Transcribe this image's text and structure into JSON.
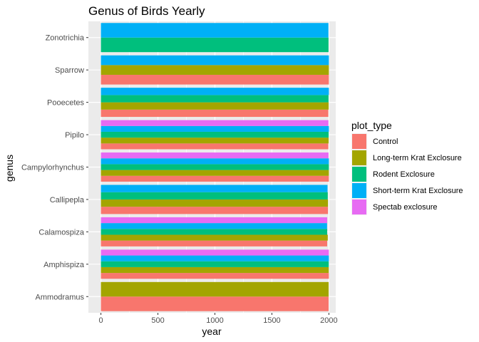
{
  "chart_data": {
    "type": "bar",
    "orientation": "horizontal",
    "title": "Genus of Birds Yearly",
    "xlabel": "year",
    "ylabel": "genus",
    "xlim": [
      -110,
      2060
    ],
    "xticks": [
      0,
      500,
      1000,
      1500,
      2000
    ],
    "grid": true,
    "legend": {
      "title": "plot_type",
      "placement": "right",
      "entries": [
        {
          "name": "Control",
          "color": "#F8766D"
        },
        {
          "name": "Long-term Krat Exclosure",
          "color": "#A3A500"
        },
        {
          "name": "Rodent Exclosure",
          "color": "#00BF7D"
        },
        {
          "name": "Short-term Krat Exclosure",
          "color": "#00B0F6"
        },
        {
          "name": "Spectab exclosure",
          "color": "#E76BF3"
        }
      ]
    },
    "categories": [
      "Ammodramus",
      "Amphispiza",
      "Calamospiza",
      "Callipepla",
      "Campylorhynchus",
      "Pipilo",
      "Pooecetes",
      "Sparrow",
      "Zonotrichia"
    ],
    "bars": [
      {
        "genus": "Ammodramus",
        "groups": [
          {
            "series": "Control",
            "value": 1998
          },
          {
            "series": "Long-term Krat Exclosure",
            "value": 1998
          }
        ]
      },
      {
        "genus": "Amphispiza",
        "groups": [
          {
            "series": "Control",
            "value": 2000
          },
          {
            "series": "Long-term Krat Exclosure",
            "value": 1999
          },
          {
            "series": "Rodent Exclosure",
            "value": 1999
          },
          {
            "series": "Short-term Krat Exclosure",
            "value": 2000
          },
          {
            "series": "Spectab exclosure",
            "value": 2000
          }
        ]
      },
      {
        "genus": "Calamospiza",
        "groups": [
          {
            "series": "Control",
            "value": 1985
          },
          {
            "series": "Long-term Krat Exclosure",
            "value": 1990
          },
          {
            "series": "Rodent Exclosure",
            "value": 1985
          },
          {
            "series": "Short-term Krat Exclosure",
            "value": 1984
          },
          {
            "series": "Spectab exclosure",
            "value": 1985
          }
        ]
      },
      {
        "genus": "Callipepla",
        "groups": [
          {
            "series": "Control",
            "value": 1992
          },
          {
            "series": "Long-term Krat Exclosure",
            "value": 1992
          },
          {
            "series": "Rodent Exclosure",
            "value": 1990
          },
          {
            "series": "Short-term Krat Exclosure",
            "value": 1988
          }
        ]
      },
      {
        "genus": "Campylorhynchus",
        "groups": [
          {
            "series": "Control",
            "value": 2000
          },
          {
            "series": "Long-term Krat Exclosure",
            "value": 2000
          },
          {
            "series": "Rodent Exclosure",
            "value": 2000
          },
          {
            "series": "Short-term Krat Exclosure",
            "value": 2000
          },
          {
            "series": "Spectab exclosure",
            "value": 1997
          }
        ]
      },
      {
        "genus": "Pipilo",
        "groups": [
          {
            "series": "Control",
            "value": 1995
          },
          {
            "series": "Long-term Krat Exclosure",
            "value": 1998
          },
          {
            "series": "Rodent Exclosure",
            "value": 1998
          },
          {
            "series": "Short-term Krat Exclosure",
            "value": 2000
          },
          {
            "series": "Spectab exclosure",
            "value": 1996
          }
        ]
      },
      {
        "genus": "Pooecetes",
        "groups": [
          {
            "series": "Control",
            "value": 1995
          },
          {
            "series": "Long-term Krat Exclosure",
            "value": 1998
          },
          {
            "series": "Rodent Exclosure",
            "value": 1997
          },
          {
            "series": "Short-term Krat Exclosure",
            "value": 2000
          }
        ]
      },
      {
        "genus": "Sparrow",
        "groups": [
          {
            "series": "Control",
            "value": 2000
          },
          {
            "series": "Long-term Krat Exclosure",
            "value": 2000
          },
          {
            "series": "Short-term Krat Exclosure",
            "value": 2000
          }
        ]
      },
      {
        "genus": "Zonotrichia",
        "groups": [
          {
            "series": "Rodent Exclosure",
            "value": 1997
          },
          {
            "series": "Short-term Krat Exclosure",
            "value": 1996
          }
        ]
      }
    ]
  }
}
